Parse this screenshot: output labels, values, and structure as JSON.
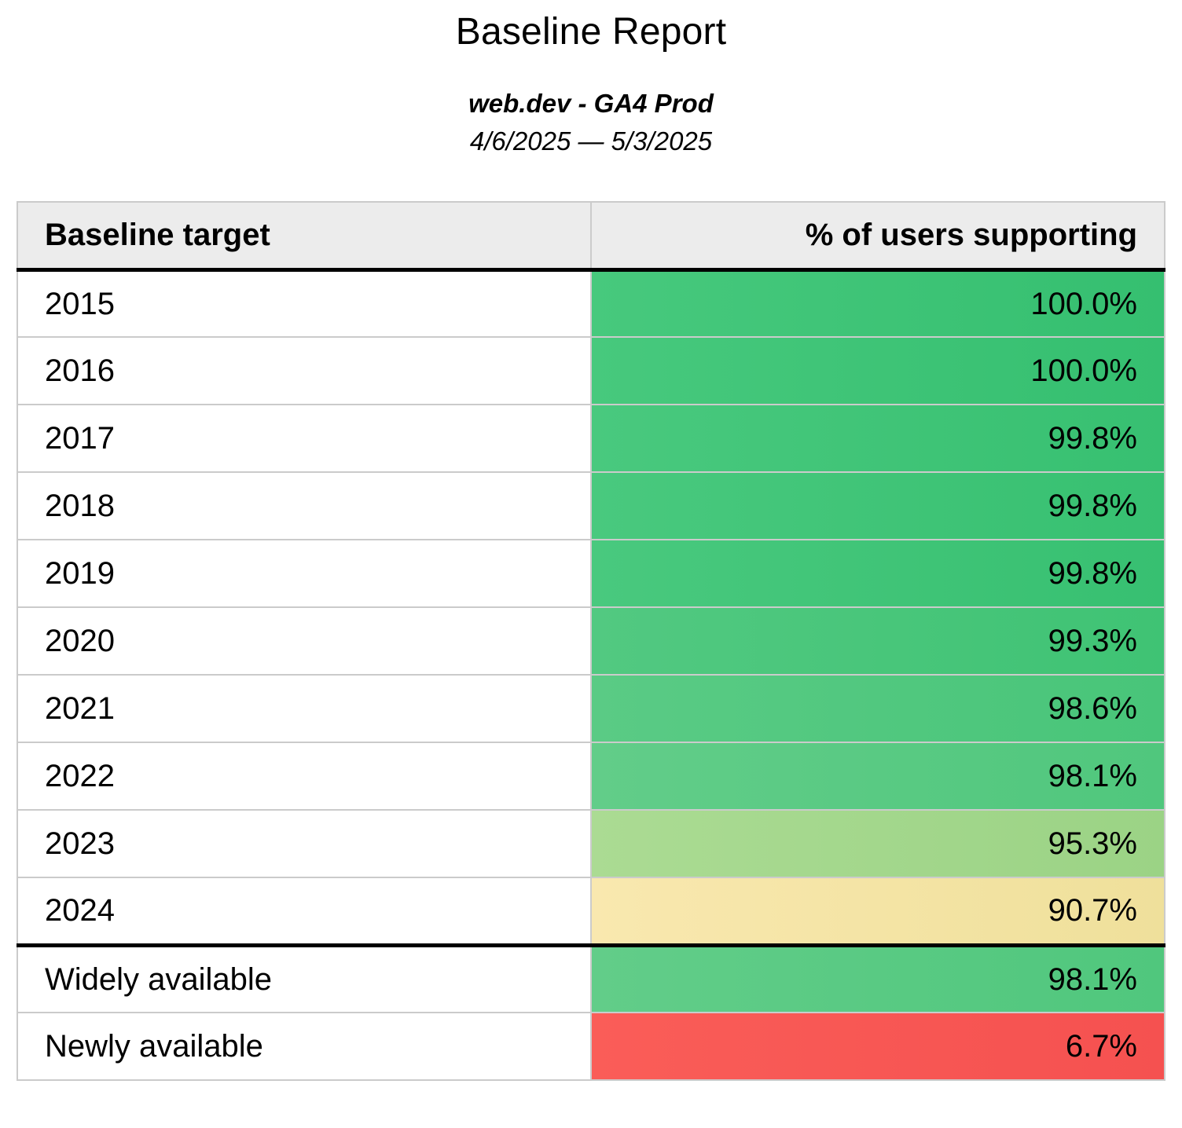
{
  "page": {
    "background": "#ffffff",
    "text_color": "#000000"
  },
  "report": {
    "title": "Baseline Report",
    "subtitle": "web.dev - GA4 Prod",
    "date_range": "4/6/2025 — 5/3/2025"
  },
  "table": {
    "border_color": "#cbcbcb",
    "separator_color": "#000000",
    "header": {
      "background": "#ececec",
      "columns": [
        {
          "label": "Baseline target",
          "align": "left"
        },
        {
          "label": "% of users supporting",
          "align": "right"
        }
      ]
    },
    "rows": [
      {
        "target": "2015",
        "value": "100.0%",
        "cell_color": [
          "#47C97D",
          "#35BF70"
        ],
        "separator_above": false
      },
      {
        "target": "2016",
        "value": "100.0%",
        "cell_color": [
          "#47C97D",
          "#35BF70"
        ],
        "separator_above": false
      },
      {
        "target": "2017",
        "value": "99.8%",
        "cell_color": [
          "#49C97E",
          "#37C071"
        ],
        "separator_above": false
      },
      {
        "target": "2018",
        "value": "99.8%",
        "cell_color": [
          "#49C97E",
          "#37C071"
        ],
        "separator_above": false
      },
      {
        "target": "2019",
        "value": "99.8%",
        "cell_color": [
          "#49C97E",
          "#37C071"
        ],
        "separator_above": false
      },
      {
        "target": "2020",
        "value": "99.3%",
        "cell_color": [
          "#52C981",
          "#3FC374"
        ],
        "separator_above": false
      },
      {
        "target": "2021",
        "value": "98.6%",
        "cell_color": [
          "#5ACB85",
          "#48C579"
        ],
        "separator_above": false
      },
      {
        "target": "2022",
        "value": "98.1%",
        "cell_color": [
          "#62CD89",
          "#50C77D"
        ],
        "separator_above": false
      },
      {
        "target": "2023",
        "value": "95.3%",
        "cell_color": [
          "#ABDB93",
          "#9BD385"
        ],
        "separator_above": false
      },
      {
        "target": "2024",
        "value": "90.7%",
        "cell_color": [
          "#F9E8AF",
          "#EFE09B"
        ],
        "separator_above": false
      },
      {
        "target": "Widely available",
        "value": "98.1%",
        "cell_color": [
          "#62CD89",
          "#50C77D"
        ],
        "separator_above": true
      },
      {
        "target": "Newly available",
        "value": "6.7%",
        "cell_color": [
          "#FA5D58",
          "#F55150"
        ],
        "separator_above": false
      }
    ]
  }
}
